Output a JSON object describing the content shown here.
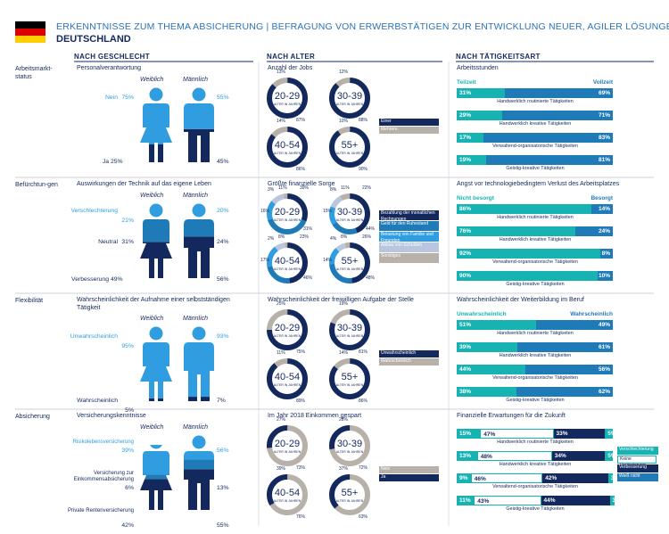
{
  "header": {
    "title": "ERKENNTNISSE ZUM THEMA ABSICHERUNG | BEFRAGUNG VON ERWERBSTÄTIGEN ZUR ENTWICKLUNG NEUER, AGILER LÖSUNGEN",
    "subtitle": "DEUTSCHLAND"
  },
  "colors": {
    "navy": "#13285c",
    "teal": "#17b3b3",
    "blue": "#1f7ab8",
    "light_blue": "#2f9de0",
    "grey": "#b8b1aa",
    "flag_black": "#000000",
    "flag_red": "#dd0000",
    "flag_gold": "#ffce00"
  },
  "columns": {
    "gender": "NACH GESCHLECHT",
    "age": "NACH ALTER",
    "activity": "NACH TÄTIGKEITSART"
  },
  "rows": [
    {
      "label": "Arbeitsmarkt-status"
    },
    {
      "label": "Befürchtun-gen"
    },
    {
      "label": "Flexibilität"
    },
    {
      "label": "Absicherung"
    }
  ],
  "gender_labels": {
    "female": "Weiblich",
    "male": "Männlich"
  },
  "age_center_suffix": "ALTER IN JAHREN",
  "chart_data": [
    {
      "type": "pictogram",
      "title": "Personalverantwortung",
      "categories": [
        "Nein",
        "Ja"
      ],
      "series": [
        {
          "name": "Weiblich",
          "values": [
            75,
            25
          ]
        },
        {
          "name": "Männlich",
          "values": [
            55,
            45
          ]
        }
      ]
    },
    {
      "type": "pictogram",
      "title": "Auswirkungen der Technik auf das eigene Leben",
      "categories": [
        "Verschlechterung",
        "Neutral",
        "Verbesserung"
      ],
      "series": [
        {
          "name": "Weiblich",
          "values": [
            21,
            31,
            49
          ]
        },
        {
          "name": "Männlich",
          "values": [
            20,
            24,
            56
          ]
        }
      ]
    },
    {
      "type": "pictogram",
      "title": "Wahrscheinlichkeit der Aufnahme einer selbstständigen Tätigkeit",
      "categories": [
        "Unwahrscheinlich",
        "Wahrscheinlich"
      ],
      "series": [
        {
          "name": "Weiblich",
          "values": [
            95,
            5
          ]
        },
        {
          "name": "Männlich",
          "values": [
            93,
            7
          ]
        }
      ]
    },
    {
      "type": "pictogram",
      "title": "Versicherungskenntnisse",
      "categories": [
        "Risikolebensversicherung",
        "Versicherung zur Einkommensabsicherung",
        "Private Rentenversicherung"
      ],
      "series": [
        {
          "name": "Weiblich",
          "values": [
            39,
            6,
            42
          ]
        },
        {
          "name": "Männlich",
          "values": [
            56,
            13,
            55
          ]
        }
      ]
    },
    {
      "type": "donut",
      "title": "Anzahl der Jobs",
      "legend": [
        "Einer",
        "Mehrere"
      ],
      "groups": [
        {
          "age": "20-29",
          "values": [
            87,
            13
          ]
        },
        {
          "age": "30-39",
          "values": [
            88,
            12
          ]
        },
        {
          "age": "40-54",
          "values": [
            86,
            14
          ]
        },
        {
          "age": "55+",
          "values": [
            90,
            10
          ]
        }
      ]
    },
    {
      "type": "donut",
      "title": "Größte finanzielle Sorge",
      "legend": [
        "Bezahlung der monatlichen Rechnungen",
        "Geld für den Ruhestand",
        "Belastung von Familie und Freunden",
        "Abbau von Schulden",
        "Sonstiges"
      ],
      "groups": [
        {
          "age": "20-29",
          "values": [
            31,
            39,
            16,
            11,
            3
          ]
        },
        {
          "age": "30-39",
          "values": [
            44,
            22,
            15,
            11,
            8
          ]
        },
        {
          "age": "40-54",
          "values": [
            46,
            23,
            17,
            8,
            2
          ]
        },
        {
          "age": "55+",
          "values": [
            48,
            26,
            14,
            8,
            4
          ]
        }
      ]
    },
    {
      "type": "donut",
      "title": "Wahrscheinlichkeit der freiwilligen Aufgabe der Stelle",
      "legend": [
        "Unwahrscheinlich",
        "Wahrscheinlich"
      ],
      "groups": [
        {
          "age": "20-29",
          "values": [
            75,
            25
          ]
        },
        {
          "age": "30-39",
          "values": [
            81,
            19
          ]
        },
        {
          "age": "40-54",
          "values": [
            89,
            11
          ]
        },
        {
          "age": "55+",
          "values": [
            86,
            14
          ]
        }
      ]
    },
    {
      "type": "donut",
      "title": "Im Jahr 2018 Einkommen gespart",
      "legend": [
        "Nein",
        "Ja"
      ],
      "groups": [
        {
          "age": "20-29",
          "values": [
            73,
            27
          ]
        },
        {
          "age": "30-39",
          "values": [
            72,
            28
          ]
        },
        {
          "age": "40-54",
          "values": [
            76,
            39
          ]
        },
        {
          "age": "55+",
          "values": [
            63,
            37
          ]
        }
      ]
    },
    {
      "type": "bar",
      "title": "Arbeitsstunden",
      "series_names": [
        "Teilzeit",
        "Vollzeit"
      ],
      "categories": [
        "Handwerklich routinierte Tätigkeiten",
        "Handwerklich kreative Tätigkeiten",
        "Verwaltend-organisatorische Tätigkeiten",
        "Geistig-kreative Tätigkeiten"
      ],
      "values": [
        [
          31,
          69
        ],
        [
          29,
          71
        ],
        [
          17,
          83
        ],
        [
          19,
          81
        ]
      ]
    },
    {
      "type": "bar",
      "title": "Angst vor technologiebedingtem Verlust des Arbeitsplatzes",
      "series_names": [
        "Nicht besorgt",
        "Besorgt"
      ],
      "categories": [
        "Handwerklich routinierte Tätigkeiten",
        "Handwerklich kreative Tätigkeiten",
        "Verwaltend-organisatorische Tätigkeiten",
        "Geistig-kreative Tätigkeiten"
      ],
      "values": [
        [
          86,
          14
        ],
        [
          76,
          24
        ],
        [
          92,
          8
        ],
        [
          90,
          10
        ]
      ]
    },
    {
      "type": "bar",
      "title": "Wahrscheinlichkeit der Weiterbildung im Beruf",
      "series_names": [
        "Unwahrscheinlich",
        "Wahrscheinlich"
      ],
      "categories": [
        "Handwerklich routinierte Tätigkeiten",
        "Handwerklich kreative Tätigkeiten",
        "Verwaltend-organisatorische Tätigkeiten",
        "Geistig-kreative Tätigkeiten"
      ],
      "values": [
        [
          51,
          49
        ],
        [
          39,
          61
        ],
        [
          44,
          56
        ],
        [
          38,
          62
        ]
      ]
    },
    {
      "type": "bar",
      "title": "Finanzielle Erwartungen für die Zukunft",
      "series_names": [
        "Verschlechterung",
        "Keine Veränderung",
        "Verbesserung",
        "Weiß nicht"
      ],
      "categories": [
        "Handwerklich routinierte Tätigkeiten",
        "Handwerklich kreative Tätigkeiten",
        "Verwaltend-organisatorische Tätigkeiten",
        "Geistig-kreative Tätigkeiten"
      ],
      "values": [
        [
          15,
          47,
          33,
          5
        ],
        [
          13,
          48,
          34,
          5
        ],
        [
          9,
          46,
          42,
          3
        ],
        [
          11,
          43,
          44,
          3
        ]
      ]
    }
  ]
}
